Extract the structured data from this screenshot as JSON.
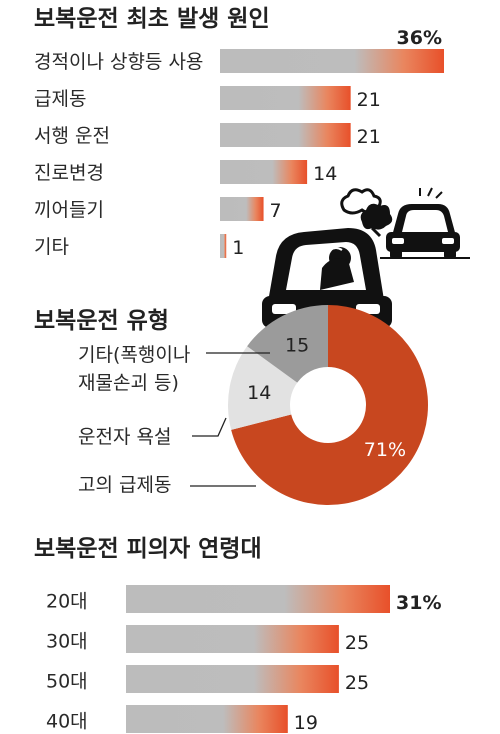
{
  "chart_data": [
    {
      "type": "bar",
      "title": "보복운전 최초 발생 원인",
      "categories": [
        "경적이나 상향등 사용",
        "급제동",
        "서행 운전",
        "진로변경",
        "끼어들기",
        "기타"
      ],
      "values": [
        36,
        21,
        21,
        14,
        7,
        1
      ],
      "value_labels": [
        "36%",
        "21",
        "21",
        "14",
        "7",
        "1"
      ],
      "unit": "%",
      "xlim": [
        0,
        36
      ]
    },
    {
      "type": "pie",
      "title": "보복운전 유형",
      "categories": [
        "고의 급제동",
        "운전자 욕설",
        "기타(폭행이나 재물손괴 등)"
      ],
      "values": [
        71,
        14,
        15
      ],
      "value_labels": [
        "71%",
        "14",
        "15"
      ],
      "label_lines": [
        [
          "고의 급제동"
        ],
        [
          "운전자 욕설"
        ],
        [
          "기타(폭행이나",
          "재물손괴 등)"
        ]
      ],
      "colors": [
        "#c8471f",
        "#e2e2e2",
        "#9b9b9b"
      ],
      "style": "donut"
    },
    {
      "type": "bar",
      "title": "보복운전 피의자 연령대",
      "categories": [
        "20대",
        "30대",
        "50대",
        "40대"
      ],
      "values": [
        31,
        25,
        25,
        19
      ],
      "value_labels": [
        "31%",
        "25",
        "25",
        "19"
      ],
      "unit": "%",
      "xlim": [
        0,
        31
      ]
    }
  ],
  "colors": {
    "bar_gray": "#b9b9b9",
    "bar_orange": "#e8562a",
    "donut_orange": "#c8471f"
  },
  "icons": [
    "angry-driver-car-icon",
    "car-with-exhaust-icon",
    "anger-puff-icon"
  ]
}
